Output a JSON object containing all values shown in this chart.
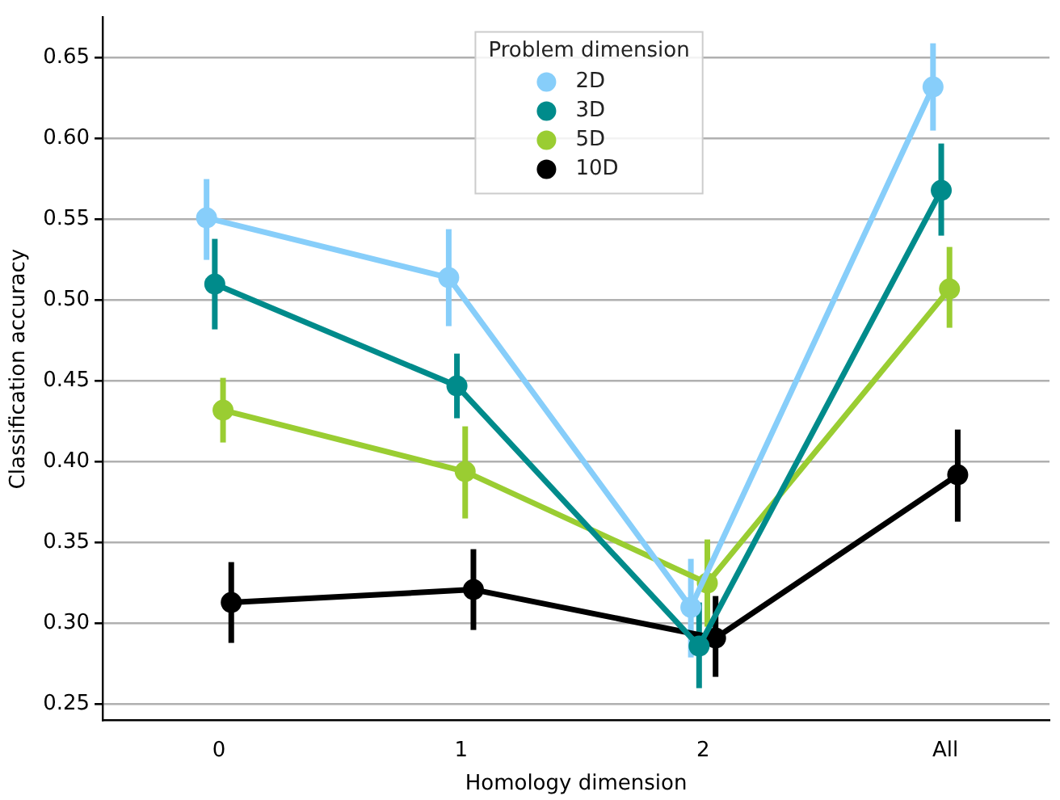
{
  "chart_data": {
    "type": "line",
    "xlabel": "Homology dimension",
    "ylabel": "Classification accuracy",
    "legend_title": "Problem dimension",
    "legend": "top",
    "grid": "y",
    "marker": "circle",
    "categories": [
      "0",
      "1",
      "2",
      "All"
    ],
    "ylim": [
      0.24,
      0.675
    ],
    "yticks": [
      {
        "value": 0.25,
        "label": "0.25"
      },
      {
        "value": 0.3,
        "label": "0.30"
      },
      {
        "value": 0.35,
        "label": "0.35"
      },
      {
        "value": 0.4,
        "label": "0.40"
      },
      {
        "value": 0.45,
        "label": "0.45"
      },
      {
        "value": 0.5,
        "label": "0.50"
      },
      {
        "value": 0.55,
        "label": "0.55"
      },
      {
        "value": 0.6,
        "label": "0.60"
      },
      {
        "value": 0.65,
        "label": "0.65"
      }
    ],
    "series": [
      {
        "name": "2D",
        "color": "#87cefa",
        "values": [
          0.551,
          0.514,
          0.31,
          0.632
        ],
        "errors": [
          [
            0.525,
            0.575
          ],
          [
            0.484,
            0.544
          ],
          [
            0.279,
            0.34
          ],
          [
            0.605,
            0.659
          ]
        ]
      },
      {
        "name": "3D",
        "color": "#008b8b",
        "values": [
          0.51,
          0.447,
          0.286,
          0.568
        ],
        "errors": [
          [
            0.482,
            0.538
          ],
          [
            0.427,
            0.467
          ],
          [
            0.26,
            0.313
          ],
          [
            0.54,
            0.597
          ]
        ]
      },
      {
        "name": "5D",
        "color": "#9acd32",
        "values": [
          0.432,
          0.394,
          0.325,
          0.507
        ],
        "errors": [
          [
            0.412,
            0.452
          ],
          [
            0.365,
            0.422
          ],
          [
            0.298,
            0.352
          ],
          [
            0.483,
            0.533
          ]
        ]
      },
      {
        "name": "10D",
        "color": "#000000",
        "values": [
          0.313,
          0.321,
          0.291,
          0.392
        ],
        "errors": [
          [
            0.288,
            0.338
          ],
          [
            0.296,
            0.346
          ],
          [
            0.267,
            0.317
          ],
          [
            0.363,
            0.42
          ]
        ]
      }
    ]
  }
}
